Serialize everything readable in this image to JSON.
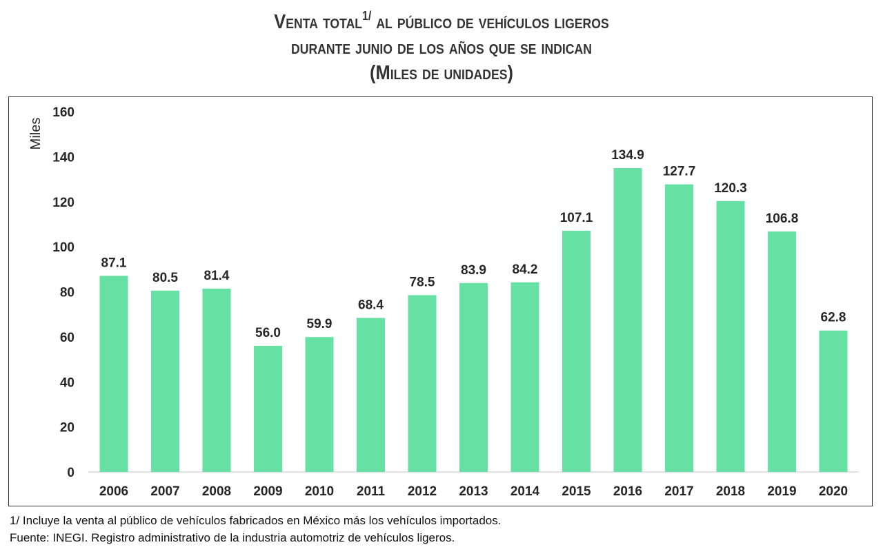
{
  "title": {
    "line1_a": "Venta total",
    "line1_sup": "1/",
    "line1_b": " al público de vehículos ligeros",
    "line2": "durante junio de los años que se indican",
    "line3": "(Miles de unidades)"
  },
  "chart_data": {
    "type": "bar",
    "categories": [
      "2006",
      "2007",
      "2008",
      "2009",
      "2010",
      "2011",
      "2012",
      "2013",
      "2014",
      "2015",
      "2016",
      "2017",
      "2018",
      "2019",
      "2020"
    ],
    "values": [
      87.1,
      80.5,
      81.4,
      56.0,
      59.9,
      68.4,
      78.5,
      83.9,
      84.2,
      107.1,
      134.9,
      127.7,
      120.3,
      106.8,
      62.8
    ],
    "data_labels": [
      "87.1",
      "80.5",
      "81.4",
      "56.0",
      "59.9",
      "68.4",
      "78.5",
      "83.9",
      "84.2",
      "107.1",
      "134.9",
      "127.7",
      "120.3",
      "106.8",
      "62.8"
    ],
    "ylabel": "Miles",
    "xlabel": "",
    "ylim": [
      0,
      160
    ],
    "yticks": [
      0,
      20,
      40,
      60,
      80,
      100,
      120,
      140,
      160
    ],
    "grid": false,
    "bar_color": "#66E0A3"
  },
  "footnotes": {
    "note1": "1/ Incluye la venta al público de vehículos fabricados en México más los vehículos importados.",
    "source": "Fuente: INEGI. Registro administrativo de la industria automotriz de vehículos ligeros."
  }
}
